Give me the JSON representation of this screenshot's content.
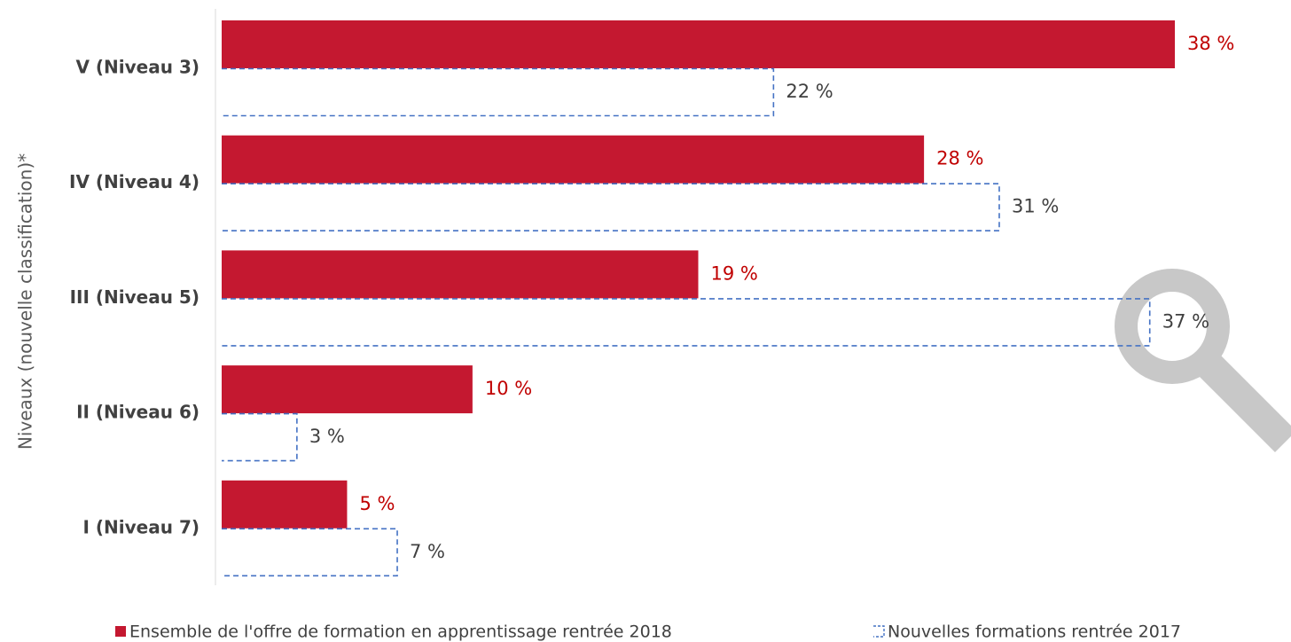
{
  "chart_data": {
    "type": "bar",
    "orientation": "horizontal",
    "y_label": "Niveaux (nouvelle classification)*",
    "categories": [
      "V (Niveau 3)",
      "IV (Niveau 4)",
      "III (Niveau 5)",
      "II (Niveau 6)",
      "I (Niveau 7)"
    ],
    "xlim": [
      0,
      38
    ],
    "series": [
      {
        "name": "Ensemble de l'offre de formation en apprentissage rentrée 2018",
        "color": "#c41830",
        "style": "solid",
        "values": [
          38,
          28,
          19,
          10,
          5
        ],
        "value_labels": [
          "38 %",
          "28 %",
          "19 %",
          "10 %",
          "5 %"
        ]
      },
      {
        "name": "Nouvelles formations rentrée 2017",
        "color": "#4472c4",
        "style": "dashed",
        "values": [
          22,
          31,
          37,
          3,
          7
        ],
        "value_labels": [
          "22 %",
          "31 %",
          "37 %",
          "3 %",
          "7 %"
        ]
      }
    ],
    "legend": "bottom"
  }
}
